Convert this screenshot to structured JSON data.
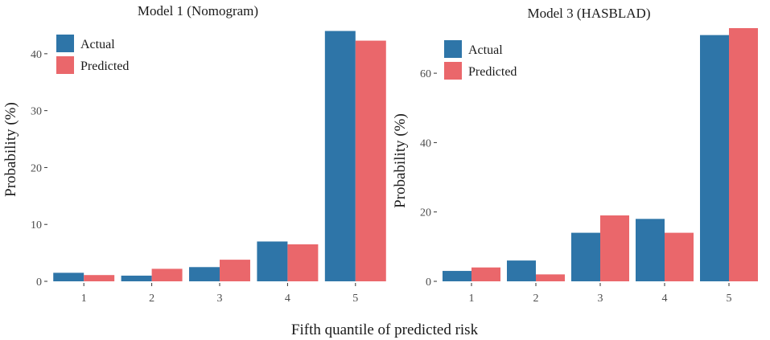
{
  "shared_xlabel": "Fifth quantile of predicted risk",
  "colors": {
    "actual": "#2e75a8",
    "predicted": "#ea676b"
  },
  "chart_data": [
    {
      "type": "bar",
      "title": "Model 1 (Nomogram)",
      "xlabel": "Fifth quantile of predicted risk",
      "ylabel": "Probability (%)",
      "categories": [
        "1",
        "2",
        "3",
        "4",
        "5"
      ],
      "ylim": [
        0,
        44.5
      ],
      "yticks": [
        0,
        10,
        20,
        30,
        40
      ],
      "legend_position": "top-left",
      "series": [
        {
          "name": "Actual",
          "color": "#2e75a8",
          "values": [
            1.5,
            1.0,
            2.5,
            7.0,
            44.0
          ]
        },
        {
          "name": "Predicted",
          "color": "#ea676b",
          "values": [
            1.1,
            2.2,
            3.8,
            6.5,
            42.3
          ]
        }
      ]
    },
    {
      "type": "bar",
      "title": "Model 3 (HASBLAD)",
      "xlabel": "Fifth quantile of predicted risk",
      "ylabel": "Probability (%)",
      "categories": [
        "1",
        "2",
        "3",
        "4",
        "5"
      ],
      "ylim": [
        0,
        73
      ],
      "yticks": [
        0,
        20,
        40,
        60
      ],
      "legend_position": "top-left",
      "series": [
        {
          "name": "Actual",
          "color": "#2e75a8",
          "values": [
            3.0,
            6.0,
            14.0,
            18.0,
            71.0
          ]
        },
        {
          "name": "Predicted",
          "color": "#ea676b",
          "values": [
            4.0,
            2.0,
            19.0,
            14.0,
            73.0
          ]
        }
      ]
    }
  ]
}
